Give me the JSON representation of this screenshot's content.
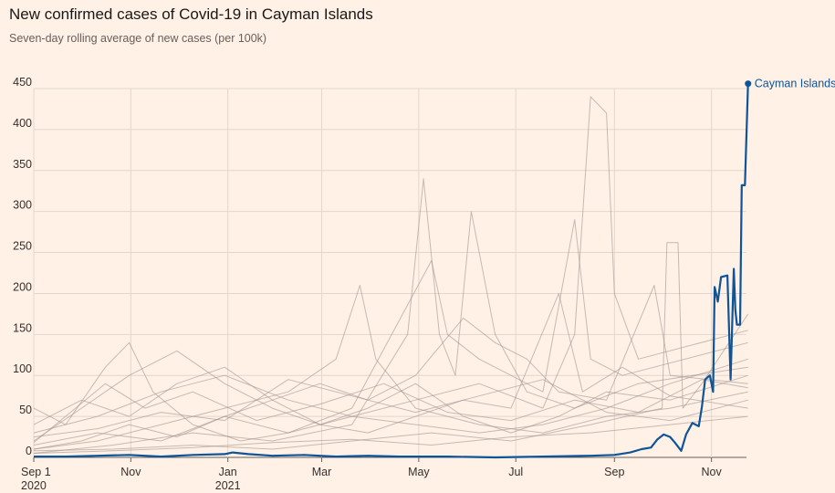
{
  "chart_data": {
    "type": "line",
    "title": "New confirmed cases of Covid-19 in Cayman Islands",
    "subtitle": "Seven-day rolling average of new cases (per 100k)",
    "xlabel": "",
    "ylabel": "",
    "ylim": [
      0,
      450
    ],
    "y_ticks": [
      "0",
      "50",
      "100",
      "150",
      "200",
      "250",
      "300",
      "350",
      "400",
      "450"
    ],
    "x_range_days": [
      0,
      448
    ],
    "x_ticks": [
      {
        "day": 0,
        "label": "Sep 1",
        "sublabel": "2020"
      },
      {
        "day": 61,
        "label": "Nov",
        "sublabel": ""
      },
      {
        "day": 122,
        "label": "Jan",
        "sublabel": "2021"
      },
      {
        "day": 181,
        "label": "Mar",
        "sublabel": ""
      },
      {
        "day": 242,
        "label": "May",
        "sublabel": ""
      },
      {
        "day": 303,
        "label": "Jul",
        "sublabel": ""
      },
      {
        "day": 365,
        "label": "Sep",
        "sublabel": ""
      },
      {
        "day": 426,
        "label": "Nov",
        "sublabel": ""
      }
    ],
    "grid": true,
    "highlight_color": "#0F5499",
    "background_color": "#9E9591",
    "highlight_series": {
      "name": "Cayman Islands",
      "points": [
        [
          0,
          1
        ],
        [
          20,
          1
        ],
        [
          40,
          2
        ],
        [
          60,
          3
        ],
        [
          80,
          1
        ],
        [
          100,
          3
        ],
        [
          120,
          4
        ],
        [
          125,
          6
        ],
        [
          135,
          4
        ],
        [
          150,
          2
        ],
        [
          170,
          3
        ],
        [
          190,
          1
        ],
        [
          210,
          2
        ],
        [
          230,
          1
        ],
        [
          260,
          1
        ],
        [
          290,
          0
        ],
        [
          320,
          1
        ],
        [
          350,
          2
        ],
        [
          365,
          3
        ],
        [
          375,
          6
        ],
        [
          382,
          10
        ],
        [
          388,
          12
        ],
        [
          392,
          22
        ],
        [
          396,
          28
        ],
        [
          400,
          25
        ],
        [
          403,
          18
        ],
        [
          407,
          8
        ],
        [
          410,
          28
        ],
        [
          414,
          42
        ],
        [
          418,
          38
        ],
        [
          420,
          62
        ],
        [
          422,
          95
        ],
        [
          425,
          100
        ],
        [
          427,
          80
        ],
        [
          428,
          208
        ],
        [
          430,
          190
        ],
        [
          432,
          220
        ],
        [
          436,
          222
        ],
        [
          438,
          95
        ],
        [
          440,
          230
        ],
        [
          441,
          180
        ],
        [
          442,
          162
        ],
        [
          444,
          162
        ],
        [
          445,
          332
        ],
        [
          447,
          332
        ],
        [
          449,
          456
        ]
      ]
    },
    "background_series": [
      {
        "points": [
          [
            0,
            60
          ],
          [
            20,
            40
          ],
          [
            45,
            110
          ],
          [
            60,
            140
          ],
          [
            75,
            80
          ],
          [
            100,
            40
          ],
          [
            130,
            20
          ],
          [
            160,
            30
          ],
          [
            200,
            50
          ],
          [
            240,
            40
          ],
          [
            280,
            30
          ],
          [
            320,
            40
          ],
          [
            360,
            60
          ],
          [
            400,
            90
          ],
          [
            449,
            120
          ]
        ]
      },
      {
        "points": [
          [
            0,
            20
          ],
          [
            30,
            60
          ],
          [
            60,
            100
          ],
          [
            90,
            130
          ],
          [
            120,
            90
          ],
          [
            150,
            60
          ],
          [
            180,
            40
          ],
          [
            210,
            60
          ],
          [
            240,
            90
          ],
          [
            270,
            50
          ],
          [
            300,
            30
          ],
          [
            330,
            50
          ],
          [
            360,
            80
          ],
          [
            400,
            70
          ],
          [
            449,
            100
          ]
        ]
      },
      {
        "points": [
          [
            0,
            10
          ],
          [
            40,
            20
          ],
          [
            80,
            40
          ],
          [
            120,
            60
          ],
          [
            160,
            80
          ],
          [
            190,
            120
          ],
          [
            205,
            210
          ],
          [
            215,
            120
          ],
          [
            240,
            60
          ],
          [
            280,
            40
          ],
          [
            320,
            30
          ],
          [
            360,
            50
          ],
          [
            400,
            60
          ],
          [
            449,
            80
          ]
        ]
      },
      {
        "points": [
          [
            0,
            5
          ],
          [
            50,
            15
          ],
          [
            100,
            30
          ],
          [
            150,
            20
          ],
          [
            200,
            40
          ],
          [
            235,
            150
          ],
          [
            245,
            340
          ],
          [
            255,
            150
          ],
          [
            265,
            100
          ],
          [
            275,
            300
          ],
          [
            290,
            150
          ],
          [
            310,
            80
          ],
          [
            340,
            60
          ],
          [
            380,
            90
          ],
          [
            449,
            110
          ]
        ]
      },
      {
        "points": [
          [
            0,
            15
          ],
          [
            40,
            30
          ],
          [
            80,
            20
          ],
          [
            120,
            50
          ],
          [
            160,
            30
          ],
          [
            200,
            60
          ],
          [
            250,
            240
          ],
          [
            260,
            150
          ],
          [
            280,
            120
          ],
          [
            300,
            100
          ],
          [
            320,
            80
          ],
          [
            340,
            290
          ],
          [
            350,
            120
          ],
          [
            370,
            100
          ],
          [
            449,
            140
          ]
        ]
      },
      {
        "points": [
          [
            0,
            30
          ],
          [
            40,
            50
          ],
          [
            80,
            80
          ],
          [
            120,
            100
          ],
          [
            160,
            70
          ],
          [
            200,
            50
          ],
          [
            240,
            70
          ],
          [
            280,
            90
          ],
          [
            320,
            60
          ],
          [
            340,
            150
          ],
          [
            350,
            440
          ],
          [
            360,
            420
          ],
          [
            365,
            200
          ],
          [
            380,
            120
          ],
          [
            449,
            155
          ]
        ]
      },
      {
        "points": [
          [
            0,
            8
          ],
          [
            50,
            10
          ],
          [
            100,
            15
          ],
          [
            150,
            10
          ],
          [
            200,
            20
          ],
          [
            250,
            30
          ],
          [
            300,
            20
          ],
          [
            350,
            40
          ],
          [
            395,
            60
          ],
          [
            398,
            262
          ],
          [
            405,
            262
          ],
          [
            408,
            60
          ],
          [
            420,
            90
          ],
          [
            449,
            175
          ]
        ]
      },
      {
        "points": [
          [
            0,
            40
          ],
          [
            30,
            70
          ],
          [
            60,
            50
          ],
          [
            90,
            90
          ],
          [
            120,
            110
          ],
          [
            150,
            70
          ],
          [
            180,
            90
          ],
          [
            210,
            70
          ],
          [
            240,
            100
          ],
          [
            270,
            170
          ],
          [
            290,
            140
          ],
          [
            310,
            120
          ],
          [
            330,
            80
          ],
          [
            360,
            70
          ],
          [
            390,
            210
          ],
          [
            400,
            100
          ],
          [
            449,
            90
          ]
        ]
      },
      {
        "points": [
          [
            0,
            10
          ],
          [
            30,
            20
          ],
          [
            60,
            40
          ],
          [
            90,
            25
          ],
          [
            120,
            50
          ],
          [
            150,
            70
          ],
          [
            180,
            40
          ],
          [
            210,
            30
          ],
          [
            240,
            50
          ],
          [
            270,
            70
          ],
          [
            300,
            60
          ],
          [
            330,
            200
          ],
          [
            345,
            80
          ],
          [
            370,
            110
          ],
          [
            400,
            75
          ],
          [
            449,
            60
          ]
        ]
      },
      {
        "points": [
          [
            0,
            25
          ],
          [
            40,
            35
          ],
          [
            80,
            55
          ],
          [
            120,
            45
          ],
          [
            160,
            95
          ],
          [
            200,
            75
          ],
          [
            240,
            55
          ],
          [
            280,
            75
          ],
          [
            320,
            95
          ],
          [
            360,
            55
          ],
          [
            400,
            45
          ],
          [
            449,
            70
          ]
        ]
      },
      {
        "points": [
          [
            0,
            5
          ],
          [
            50,
            8
          ],
          [
            100,
            12
          ],
          [
            150,
            18
          ],
          [
            200,
            22
          ],
          [
            250,
            15
          ],
          [
            300,
            25
          ],
          [
            350,
            30
          ],
          [
            400,
            40
          ],
          [
            449,
            50
          ]
        ]
      },
      {
        "points": [
          [
            0,
            18
          ],
          [
            45,
            90
          ],
          [
            70,
            60
          ],
          [
            100,
            80
          ],
          [
            140,
            45
          ],
          [
            180,
            65
          ],
          [
            220,
            90
          ],
          [
            260,
            55
          ],
          [
            300,
            45
          ],
          [
            340,
            70
          ],
          [
            380,
            55
          ],
          [
            420,
            95
          ],
          [
            449,
            85
          ]
        ]
      }
    ]
  }
}
